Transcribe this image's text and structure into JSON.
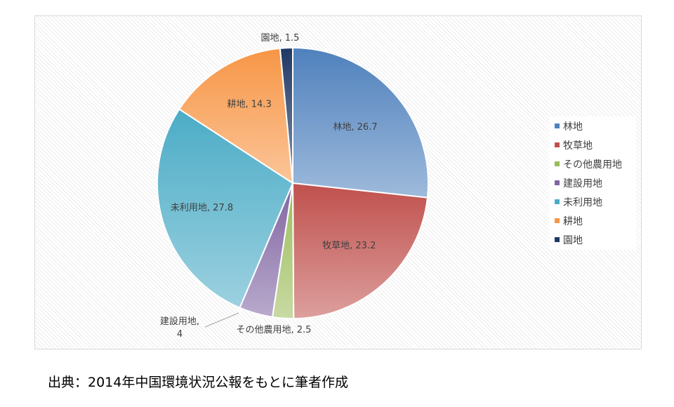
{
  "chart_data": {
    "type": "pie",
    "categories": [
      "林地",
      "牧草地",
      "その他農用地",
      "建設用地",
      "未利用地",
      "耕地",
      "園地"
    ],
    "values": [
      26.7,
      23.2,
      2.5,
      4,
      27.8,
      14.3,
      1.5
    ],
    "data_labels": [
      "林地, 26.7",
      "牧草地, 23.2",
      "その他農用地, 2.5",
      "建設用地,\n4",
      "未利用地, 27.8",
      "耕地, 14.3",
      "園地, 1.5"
    ],
    "colors": [
      "#4f81bd",
      "#c0504d",
      "#9bbb59",
      "#8064a2",
      "#4bacc6",
      "#f79646",
      "#1f3864"
    ],
    "legend_position": "right",
    "start_angle": "top, clockwise"
  },
  "source_note": "出典：2014年中国環境状況公報をもとに筆者作成"
}
